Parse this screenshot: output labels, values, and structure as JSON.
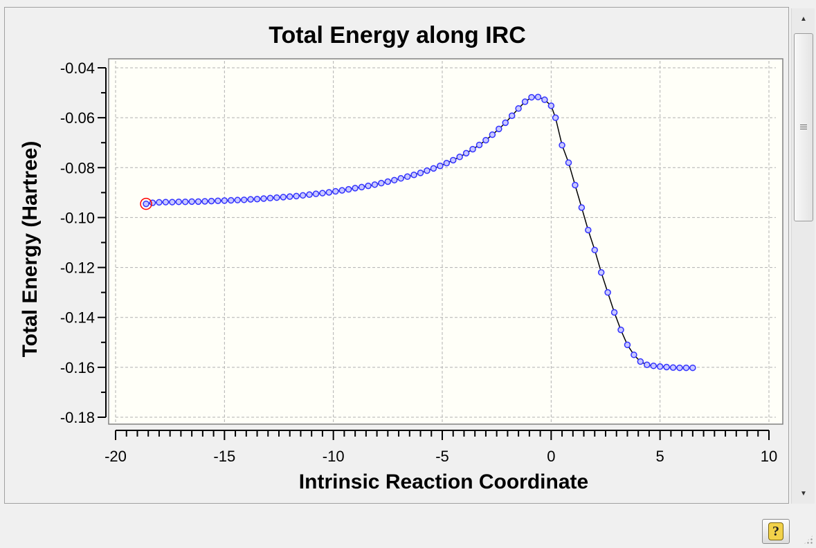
{
  "chart_data": {
    "type": "scatter",
    "title": "Total Energy along IRC",
    "xlabel": "Intrinsic Reaction Coordinate",
    "ylabel": "Total Energy (Hartree)",
    "xlim": [
      -20,
      10
    ],
    "ylim": [
      -0.18,
      -0.04
    ],
    "x_ticks": [
      -20,
      -15,
      -10,
      -5,
      0,
      5,
      10
    ],
    "x_tick_labels": [
      "-20",
      "-15",
      "-10",
      "-5",
      "0",
      "5",
      "10"
    ],
    "y_ticks": [
      -0.04,
      -0.06,
      -0.08,
      -0.1,
      -0.12,
      -0.14,
      -0.16,
      -0.18
    ],
    "y_tick_labels": [
      "-0.04",
      "-0.06",
      "-0.08",
      "-0.10",
      "-0.12",
      "-0.14",
      "-0.16",
      "-0.18"
    ],
    "grid": true,
    "legend": "none",
    "colors": {
      "plot_background": "#fffff8",
      "marker": "#3333ff",
      "marker_fill": "#c8c8ff",
      "line": "#000000",
      "highlight": "#ff0000",
      "grid": "#b0b0b0"
    },
    "highlighted_point": [
      -18.6,
      -0.0945
    ],
    "series": [
      {
        "x": [
          -18.6,
          -18.3,
          -18.0,
          -17.7,
          -17.4,
          -17.1,
          -16.8,
          -16.5,
          -16.2,
          -15.9,
          -15.6,
          -15.3,
          -15.0,
          -14.7,
          -14.4,
          -14.1,
          -13.8,
          -13.5,
          -13.2,
          -12.9,
          -12.6,
          -12.3,
          -12.0,
          -11.7,
          -11.4,
          -11.1,
          -10.8,
          -10.5,
          -10.2,
          -9.9,
          -9.6,
          -9.3,
          -9.0,
          -8.7,
          -8.4,
          -8.1,
          -7.8,
          -7.5,
          -7.2,
          -6.9,
          -6.6,
          -6.3,
          -6.0,
          -5.7,
          -5.4,
          -5.1,
          -4.8,
          -4.5,
          -4.2,
          -3.9,
          -3.6,
          -3.3,
          -3.0,
          -2.7,
          -2.4,
          -2.1,
          -1.8,
          -1.5,
          -1.2,
          -0.9,
          -0.6,
          -0.3,
          0.0,
          0.2,
          0.5,
          0.8,
          1.1,
          1.4,
          1.7,
          2.0,
          2.3,
          2.6,
          2.9,
          3.2,
          3.5,
          3.8,
          4.1,
          4.4,
          4.7,
          5.0,
          5.3,
          5.6,
          5.9,
          6.2,
          6.5
        ],
        "y": [
          -0.0945,
          -0.0941,
          -0.0939,
          -0.0938,
          -0.0938,
          -0.0937,
          -0.0937,
          -0.0936,
          -0.0936,
          -0.0935,
          -0.0934,
          -0.0933,
          -0.0932,
          -0.0931,
          -0.093,
          -0.0929,
          -0.0927,
          -0.0926,
          -0.0924,
          -0.0922,
          -0.092,
          -0.0918,
          -0.0916,
          -0.0914,
          -0.0911,
          -0.0908,
          -0.0905,
          -0.0902,
          -0.0899,
          -0.0895,
          -0.0891,
          -0.0887,
          -0.0882,
          -0.0878,
          -0.0873,
          -0.0868,
          -0.0862,
          -0.0856,
          -0.085,
          -0.0843,
          -0.0836,
          -0.0829,
          -0.0821,
          -0.0812,
          -0.0803,
          -0.0793,
          -0.0782,
          -0.077,
          -0.0757,
          -0.0742,
          -0.0726,
          -0.0709,
          -0.069,
          -0.0668,
          -0.0645,
          -0.062,
          -0.0592,
          -0.0563,
          -0.0536,
          -0.0518,
          -0.0517,
          -0.0528,
          -0.0552,
          -0.06,
          -0.071,
          -0.078,
          -0.087,
          -0.096,
          -0.105,
          -0.113,
          -0.122,
          -0.13,
          -0.138,
          -0.145,
          -0.151,
          -0.155,
          -0.1577,
          -0.159,
          -0.1594,
          -0.1597,
          -0.1599,
          -0.1601,
          -0.1602,
          -0.1602,
          -0.1602
        ]
      }
    ]
  }
}
